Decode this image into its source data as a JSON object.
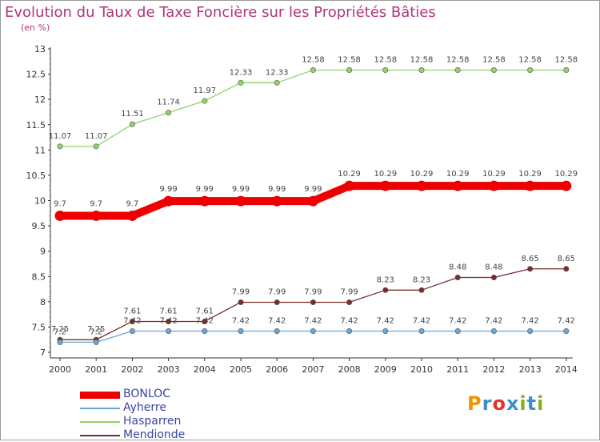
{
  "header": {
    "title": "Evolution du Taux de Taxe Foncière sur les Propriétés Bâties",
    "subtitle": "(en %)"
  },
  "logo": {
    "text": "Proxiti",
    "colors": [
      "#f29400",
      "#3b8fd1",
      "#e3342f",
      "#3b8fd1",
      "#7cb518",
      "#3b8fd1",
      "#7cb518"
    ]
  },
  "chart_data": {
    "type": "line",
    "title": "Evolution du Taux de Taxe Foncière sur les Propriétés Bâties",
    "ylabel": "(en %)",
    "xlabel": "",
    "x": [
      "2000",
      "2001",
      "2002",
      "2003",
      "2004",
      "2005",
      "2006",
      "2007",
      "2008",
      "2009",
      "2010",
      "2011",
      "2012",
      "2013",
      "2014"
    ],
    "ylim": [
      7,
      13
    ],
    "yticks": [
      "7",
      "7.5",
      "8",
      "8.5",
      "9",
      "9.5",
      "10",
      "10.5",
      "11",
      "11.5",
      "12",
      "12.5",
      "13"
    ],
    "grid": false,
    "legend_position": "bottom-left",
    "series": [
      {
        "name": "BONLOC",
        "color": "#ee0000",
        "values": [
          9.7,
          9.7,
          9.7,
          9.99,
          9.99,
          9.99,
          9.99,
          9.99,
          10.29,
          10.29,
          10.29,
          10.29,
          10.29,
          10.29,
          10.29
        ],
        "labels": [
          "9.7",
          "9.7",
          "9.7",
          "9.99",
          "9.99",
          "9.99",
          "9.99",
          "9.99",
          "10.29",
          "10.29",
          "10.29",
          "10.29",
          "10.29",
          "10.29",
          "10.29"
        ]
      },
      {
        "name": "Ayherre",
        "color": "#6aa6d6",
        "values": [
          7.2,
          7.2,
          7.42,
          7.42,
          7.42,
          7.42,
          7.42,
          7.42,
          7.42,
          7.42,
          7.42,
          7.42,
          7.42,
          7.42,
          7.42
        ],
        "labels": [
          "7.2",
          "7.2",
          "7.42",
          "7.42",
          "7.42",
          "7.42",
          "7.42",
          "7.42",
          "7.42",
          "7.42",
          "7.42",
          "7.42",
          "7.42",
          "7.42",
          "7.42"
        ]
      },
      {
        "name": "Hasparren",
        "color": "#8fd36a",
        "values": [
          11.07,
          11.07,
          11.51,
          11.74,
          11.97,
          12.33,
          12.33,
          12.58,
          12.58,
          12.58,
          12.58,
          12.58,
          12.58,
          12.58,
          12.58
        ],
        "labels": [
          "11.07",
          "11.07",
          "11.51",
          "11.74",
          "11.97",
          "12.33",
          "12.33",
          "12.58",
          "12.58",
          "12.58",
          "12.58",
          "12.58",
          "12.58",
          "12.58",
          "12.58"
        ]
      },
      {
        "name": "Mendionde",
        "color": "#7a2d2d",
        "values": [
          7.25,
          7.25,
          7.61,
          7.61,
          7.61,
          7.99,
          7.99,
          7.99,
          7.99,
          8.23,
          8.23,
          8.48,
          8.48,
          8.65,
          8.65
        ],
        "labels": [
          "7.25",
          "7.25",
          "7.61",
          "7.61",
          "7.61",
          "7.99",
          "7.99",
          "7.99",
          "7.99",
          "8.23",
          "8.23",
          "8.48",
          "8.48",
          "8.65",
          "8.65"
        ]
      }
    ]
  }
}
